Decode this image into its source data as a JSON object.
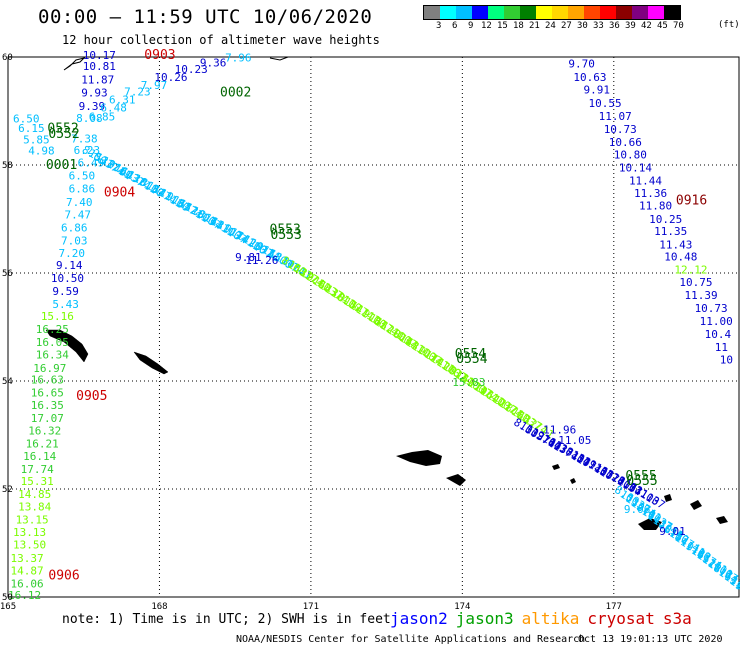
{
  "header": {
    "title": "00:00 – 11:59 UTC 10/06/2020",
    "subtitle": "12 hour collection of altimeter wave heights"
  },
  "colorbar": {
    "labels": [
      "3",
      "6",
      "9",
      "12",
      "15",
      "18",
      "21",
      "24",
      "27",
      "30",
      "33",
      "36",
      "39",
      "42",
      "45",
      "70"
    ],
    "unit": "(ft)",
    "colors": [
      "#808080",
      "#00ffff",
      "#00bfff",
      "#0000ff",
      "#00ff7f",
      "#32cd32",
      "#008000",
      "#ffff00",
      "#ffd700",
      "#ffa500",
      "#ff4500",
      "#ff0000",
      "#8b0000",
      "#800080",
      "#ff00ff",
      "#000000"
    ]
  },
  "axes": {
    "x_ticks": [
      "165",
      "168",
      "171",
      "174",
      "177"
    ],
    "y_ticks": [
      "60",
      "58",
      "56",
      "54",
      "52",
      "50"
    ],
    "x_range": [
      165,
      179.5
    ],
    "y_range": [
      50,
      60
    ]
  },
  "legend": {
    "note": "note: 1) Time is in UTC; 2) SWH is in feet",
    "items": [
      {
        "name": "jason2",
        "color": "#0000ff"
      },
      {
        "name": "jason3",
        "color": "#00a000"
      },
      {
        "name": "altika",
        "color": "#ff9900"
      },
      {
        "name": "cryosat",
        "color": "#cc0000"
      },
      {
        "name": "s3a",
        "color": "#cc0000"
      }
    ]
  },
  "footer": {
    "credit": "NOAA/NESDIS Center for Satellite Applications and Research",
    "timestamp": "Oct 13 19:01:13 UTC 2020"
  },
  "time_labels": [
    {
      "text": "0903",
      "lon": 167.7,
      "lat": 59.96,
      "color": "#cc0000"
    },
    {
      "text": "0002",
      "lon": 169.2,
      "lat": 59.27,
      "color": "#006400"
    },
    {
      "text": "0552",
      "lon": 165.78,
      "lat": 58.6,
      "color": "#006400"
    },
    {
      "text": "0552",
      "lon": 165.8,
      "lat": 58.5,
      "color": "#006400"
    },
    {
      "text": "0001",
      "lon": 165.75,
      "lat": 57.93,
      "color": "#006400"
    },
    {
      "text": "0904",
      "lon": 166.9,
      "lat": 57.42,
      "color": "#cc0000"
    },
    {
      "text": "0916",
      "lon": 178.23,
      "lat": 57.27,
      "color": "#8b0000"
    },
    {
      "text": "0553",
      "lon": 170.18,
      "lat": 56.73,
      "color": "#006400"
    },
    {
      "text": "0553",
      "lon": 170.2,
      "lat": 56.63,
      "color": "#006400"
    },
    {
      "text": "0554",
      "lon": 173.85,
      "lat": 54.43,
      "color": "#006400"
    },
    {
      "text": "0554",
      "lon": 173.88,
      "lat": 54.33,
      "color": "#006400"
    },
    {
      "text": "0905",
      "lon": 166.35,
      "lat": 53.65,
      "color": "#cc0000"
    },
    {
      "text": "0555",
      "lon": 177.23,
      "lat": 52.17,
      "color": "#006400"
    },
    {
      "text": "0555",
      "lon": 177.25,
      "lat": 52.07,
      "color": "#006400"
    },
    {
      "text": "0906",
      "lon": 165.8,
      "lat": 50.32,
      "color": "#cc0000"
    }
  ],
  "swh_labels": [
    {
      "v": "10.17",
      "lon": 166.48,
      "lat": 59.96,
      "c": "#0000cd"
    },
    {
      "v": "10.81",
      "lon": 166.48,
      "lat": 59.76,
      "c": "#0000cd"
    },
    {
      "v": "11.87",
      "lon": 166.45,
      "lat": 59.51,
      "c": "#0000cd"
    },
    {
      "v": "9.93",
      "lon": 166.45,
      "lat": 59.27,
      "c": "#0000cd"
    },
    {
      "v": "9.39",
      "lon": 166.4,
      "lat": 59.02,
      "c": "#0000cd"
    },
    {
      "v": "8.08",
      "lon": 166.35,
      "lat": 58.8,
      "c": "#00bfff"
    },
    {
      "v": "6.85",
      "lon": 166.6,
      "lat": 58.82,
      "c": "#00bfff"
    },
    {
      "v": "6.48",
      "lon": 166.83,
      "lat": 58.99,
      "c": "#00bfff"
    },
    {
      "v": "6.31",
      "lon": 167.0,
      "lat": 59.14,
      "c": "#00bfff"
    },
    {
      "v": "7.23",
      "lon": 167.3,
      "lat": 59.29,
      "c": "#00bfff"
    },
    {
      "v": "7.97",
      "lon": 167.63,
      "lat": 59.41,
      "c": "#00bfff"
    },
    {
      "v": "10.26",
      "lon": 167.9,
      "lat": 59.56,
      "c": "#0000cd"
    },
    {
      "v": "10.23",
      "lon": 168.3,
      "lat": 59.7,
      "c": "#0000cd"
    },
    {
      "v": "9.36",
      "lon": 168.8,
      "lat": 59.82,
      "c": "#0000cd"
    },
    {
      "v": "7.96",
      "lon": 169.3,
      "lat": 59.92,
      "c": "#00bfff"
    },
    {
      "v": "6.50",
      "lon": 165.1,
      "lat": 58.79,
      "c": "#00bfff"
    },
    {
      "v": "6.15",
      "lon": 165.2,
      "lat": 58.61,
      "c": "#00bfff"
    },
    {
      "v": "7.38",
      "lon": 166.25,
      "lat": 58.42,
      "c": "#00bfff"
    },
    {
      "v": "5.85",
      "lon": 165.3,
      "lat": 58.4,
      "c": "#00bfff"
    },
    {
      "v": "6.23",
      "lon": 166.3,
      "lat": 58.2,
      "c": "#00bfff"
    },
    {
      "v": "4.98",
      "lon": 165.4,
      "lat": 58.19,
      "c": "#00bfff"
    },
    {
      "v": "6.49",
      "lon": 166.38,
      "lat": 57.97,
      "c": "#00bfff"
    },
    {
      "v": "6.50",
      "lon": 166.2,
      "lat": 57.73,
      "c": "#00bfff"
    },
    {
      "v": "6.86",
      "lon": 166.2,
      "lat": 57.49,
      "c": "#00bfff"
    },
    {
      "v": "7.40",
      "lon": 166.15,
      "lat": 57.24,
      "c": "#00bfff"
    },
    {
      "v": "7.47",
      "lon": 166.12,
      "lat": 57.01,
      "c": "#00bfff"
    },
    {
      "v": "6.86",
      "lon": 166.05,
      "lat": 56.77,
      "c": "#00bfff"
    },
    {
      "v": "7.03",
      "lon": 166.05,
      "lat": 56.53,
      "c": "#00bfff"
    },
    {
      "v": "7.20",
      "lon": 166.0,
      "lat": 56.3,
      "c": "#00bfff"
    },
    {
      "v": "9.14",
      "lon": 165.95,
      "lat": 56.07,
      "c": "#0000cd"
    },
    {
      "v": "10.50",
      "lon": 165.85,
      "lat": 55.83,
      "c": "#0000cd"
    },
    {
      "v": "9.59",
      "lon": 165.88,
      "lat": 55.59,
      "c": "#0000cd"
    },
    {
      "v": "5.43",
      "lon": 165.88,
      "lat": 55.35,
      "c": "#00bfff"
    },
    {
      "v": "15.16",
      "lon": 165.65,
      "lat": 55.13,
      "c": "#7cfc00"
    },
    {
      "v": "16.25",
      "lon": 165.55,
      "lat": 54.89,
      "c": "#32cd32"
    },
    {
      "v": "16.05",
      "lon": 165.55,
      "lat": 54.65,
      "c": "#32cd32"
    },
    {
      "v": "16.34",
      "lon": 165.55,
      "lat": 54.42,
      "c": "#32cd32"
    },
    {
      "v": "16.97",
      "lon": 165.5,
      "lat": 54.17,
      "c": "#32cd32"
    },
    {
      "v": "16.63",
      "lon": 165.45,
      "lat": 53.95,
      "c": "#32cd32"
    },
    {
      "v": "16.65",
      "lon": 165.45,
      "lat": 53.71,
      "c": "#32cd32"
    },
    {
      "v": "16.35",
      "lon": 165.45,
      "lat": 53.48,
      "c": "#32cd32"
    },
    {
      "v": "17.07",
      "lon": 165.45,
      "lat": 53.24,
      "c": "#32cd32"
    },
    {
      "v": "16.32",
      "lon": 165.4,
      "lat": 53.01,
      "c": "#32cd32"
    },
    {
      "v": "16.21",
      "lon": 165.35,
      "lat": 52.77,
      "c": "#32cd32"
    },
    {
      "v": "16.14",
      "lon": 165.3,
      "lat": 52.54,
      "c": "#32cd32"
    },
    {
      "v": "17.74",
      "lon": 165.25,
      "lat": 52.3,
      "c": "#32cd32"
    },
    {
      "v": "15.31",
      "lon": 165.25,
      "lat": 52.07,
      "c": "#7cfc00"
    },
    {
      "v": "14.85",
      "lon": 165.2,
      "lat": 51.83,
      "c": "#7cfc00"
    },
    {
      "v": "13.84",
      "lon": 165.2,
      "lat": 51.6,
      "c": "#7cfc00"
    },
    {
      "v": "13.15",
      "lon": 165.15,
      "lat": 51.36,
      "c": "#7cfc00"
    },
    {
      "v": "13.13",
      "lon": 165.1,
      "lat": 51.13,
      "c": "#7cfc00"
    },
    {
      "v": "13.50",
      "lon": 165.1,
      "lat": 50.9,
      "c": "#7cfc00"
    },
    {
      "v": "13.37",
      "lon": 165.05,
      "lat": 50.65,
      "c": "#7cfc00"
    },
    {
      "v": "14.87",
      "lon": 165.05,
      "lat": 50.42,
      "c": "#7cfc00"
    },
    {
      "v": "16.06",
      "lon": 165.05,
      "lat": 50.18,
      "c": "#32cd32"
    },
    {
      "v": "16.12",
      "lon": 165.0,
      "lat": 49.96,
      "c": "#32cd32"
    },
    {
      "v": "9.70",
      "lon": 176.1,
      "lat": 59.81,
      "c": "#0000cd"
    },
    {
      "v": "10.63",
      "lon": 176.2,
      "lat": 59.56,
      "c": "#0000cd"
    },
    {
      "v": "9.91",
      "lon": 176.4,
      "lat": 59.32,
      "c": "#0000cd"
    },
    {
      "v": "10.55",
      "lon": 176.5,
      "lat": 59.07,
      "c": "#0000cd"
    },
    {
      "v": "11.07",
      "lon": 176.7,
      "lat": 58.83,
      "c": "#0000cd"
    },
    {
      "v": "10.73",
      "lon": 176.8,
      "lat": 58.59,
      "c": "#0000cd"
    },
    {
      "v": "10.66",
      "lon": 176.9,
      "lat": 58.35,
      "c": "#0000cd"
    },
    {
      "v": "10.80",
      "lon": 177.0,
      "lat": 58.12,
      "c": "#0000cd"
    },
    {
      "v": "10.14",
      "lon": 177.1,
      "lat": 57.88,
      "c": "#0000cd"
    },
    {
      "v": "11.44",
      "lon": 177.3,
      "lat": 57.64,
      "c": "#0000cd"
    },
    {
      "v": "11.36",
      "lon": 177.4,
      "lat": 57.41,
      "c": "#0000cd"
    },
    {
      "v": "11.80",
      "lon": 177.5,
      "lat": 57.18,
      "c": "#0000cd"
    },
    {
      "v": "10.25",
      "lon": 177.7,
      "lat": 56.93,
      "c": "#0000cd"
    },
    {
      "v": "11.35",
      "lon": 177.8,
      "lat": 56.7,
      "c": "#0000cd"
    },
    {
      "v": "11.43",
      "lon": 177.9,
      "lat": 56.45,
      "c": "#0000cd"
    },
    {
      "v": "10.48",
      "lon": 178.0,
      "lat": 56.23,
      "c": "#0000cd"
    },
    {
      "v": "12.12",
      "lon": 178.2,
      "lat": 55.99,
      "c": "#7cfc00"
    },
    {
      "v": "10.75",
      "lon": 178.3,
      "lat": 55.76,
      "c": "#0000cd"
    },
    {
      "v": "11.39",
      "lon": 178.4,
      "lat": 55.52,
      "c": "#0000cd"
    },
    {
      "v": "10.73",
      "lon": 178.6,
      "lat": 55.28,
      "c": "#0000cd"
    },
    {
      "v": "11.00",
      "lon": 178.7,
      "lat": 55.04,
      "c": "#0000cd"
    },
    {
      "v": "10.4",
      "lon": 178.8,
      "lat": 54.8,
      "c": "#0000cd"
    },
    {
      "v": "11",
      "lon": 179.0,
      "lat": 54.56,
      "c": "#0000cd"
    },
    {
      "v": "10",
      "lon": 179.1,
      "lat": 54.32,
      "c": "#0000cd"
    },
    {
      "v": "11.26",
      "lon": 169.7,
      "lat": 56.17,
      "c": "#0000cd"
    },
    {
      "v": "9.81",
      "lon": 169.5,
      "lat": 56.22,
      "c": "#0000cd"
    },
    {
      "v": "15.83",
      "lon": 173.8,
      "lat": 53.91,
      "c": "#32cd32"
    },
    {
      "v": "11.96",
      "lon": 175.6,
      "lat": 53.03,
      "c": "#0000cd"
    },
    {
      "v": "11.05",
      "lon": 175.9,
      "lat": 52.83,
      "c": "#0000cd"
    },
    {
      "v": "9.06",
      "lon": 177.2,
      "lat": 51.56,
      "c": "#00bfff"
    },
    {
      "v": "9.01",
      "lon": 177.9,
      "lat": 51.15,
      "c": "#0000cd"
    }
  ],
  "tracks": [
    {
      "name": "track-0903-0904",
      "color": "#00bfff",
      "start": [
        166.45,
        58.25
      ],
      "end": [
        170.4,
        56.2
      ],
      "n": 32
    },
    {
      "name": "track-0553-0554",
      "color": "#7cfc00",
      "start": [
        170.4,
        56.2
      ],
      "end": [
        175.2,
        53.25
      ],
      "n": 40
    },
    {
      "name": "track-0554-0555",
      "color": "#0000cd",
      "start": [
        175.0,
        53.2
      ],
      "end": [
        177.4,
        51.95
      ],
      "n": 22
    },
    {
      "name": "track-0555-end",
      "color": "#00bfff",
      "start": [
        177.0,
        51.95
      ],
      "end": [
        179.5,
        50.1
      ],
      "n": 24
    }
  ]
}
